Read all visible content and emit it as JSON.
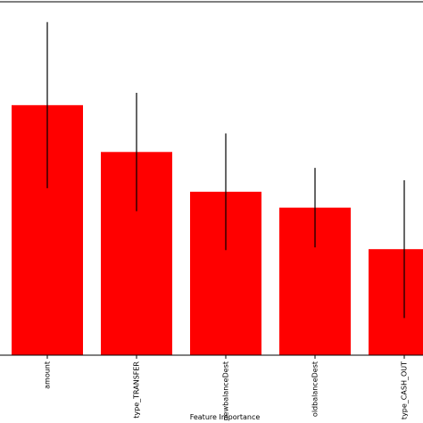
{
  "chart_data": {
    "type": "bar",
    "categories": [
      "amount",
      "type_TRANSFER",
      "newbalanceDest",
      "oldbalanceDest",
      "type_CASH_OUT"
    ],
    "values": [
      0.283,
      0.23,
      0.185,
      0.167,
      0.12
    ],
    "error": [
      0.094,
      0.067,
      0.066,
      0.045,
      0.078
    ],
    "xlabel": "Feature Importance",
    "ylabel": "",
    "ylim": [
      0,
      0.4
    ],
    "grid": false,
    "bar_color": "#ff0000",
    "error_color": "#000000"
  }
}
